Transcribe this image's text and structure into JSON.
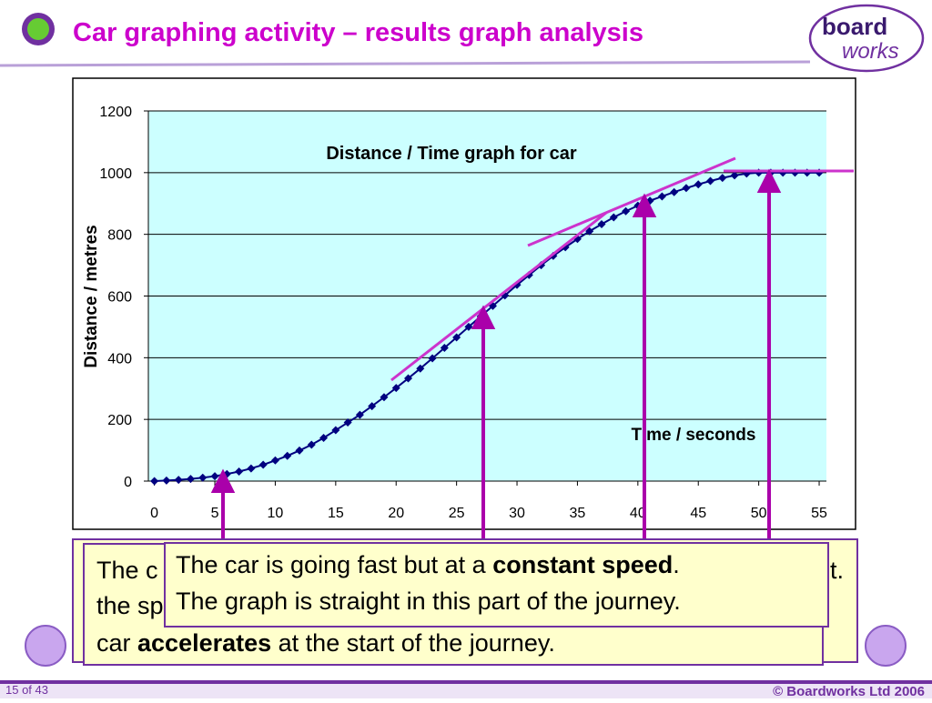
{
  "header": {
    "title": "Car graphing activity – results graph analysis",
    "logo_top": "board",
    "logo_bottom": "works"
  },
  "chart_data": {
    "type": "line",
    "title": "Distance / Time graph for car",
    "x_label": "Time / seconds",
    "y_label": "Distance / metres",
    "x": [
      0,
      1,
      2,
      3,
      4,
      5,
      6,
      7,
      8,
      9,
      10,
      11,
      12,
      13,
      14,
      15,
      16,
      17,
      18,
      19,
      20,
      21,
      22,
      23,
      24,
      25,
      26,
      27,
      28,
      29,
      30,
      31,
      32,
      33,
      34,
      35,
      36,
      37,
      38,
      39,
      40,
      41,
      42,
      43,
      44,
      45,
      46,
      47,
      48,
      49,
      50,
      51,
      52,
      53,
      54,
      55
    ],
    "series": [
      {
        "name": "Distance",
        "color": "#000080",
        "values": [
          0,
          2,
          4,
          7,
          11,
          16,
          23,
          31,
          41,
          53,
          67,
          82,
          99,
          118,
          140,
          165,
          190,
          215,
          243,
          272,
          302,
          333,
          365,
          398,
          432,
          466,
          500,
          534,
          568,
          602,
          636,
          668,
          700,
          730,
          758,
          785,
          810,
          833,
          855,
          875,
          893,
          909,
          923,
          937,
          950,
          962,
          973,
          983,
          991,
          997,
          1000,
          1000,
          1000,
          1000,
          1000,
          1000
        ]
      }
    ],
    "xlim": [
      -0.5,
      55.6
    ],
    "xticks": [
      0,
      5,
      10,
      15,
      20,
      25,
      30,
      35,
      40,
      45,
      50,
      55
    ],
    "ylim": [
      0,
      1200
    ],
    "yticks": [
      0,
      200,
      400,
      600,
      800,
      1000,
      1200
    ],
    "grid": true,
    "plot_color": "#ccffff"
  },
  "back_box": {
    "line1_start": "The c",
    "line1_end": "t.",
    "line2_start": "the sp",
    "line3_start": "car ",
    "line3_bold": "accelerates",
    "line3_end": " at the start of the journey."
  },
  "front_box": {
    "line1_start": "The car is going fast but at a ",
    "line1_bold": "constant speed",
    "line1_end": ".",
    "line2": "The graph is straight in this part of the journey."
  },
  "footer": {
    "slide": "15 of 43",
    "copyright": "© Boardworks Ltd 2006"
  }
}
